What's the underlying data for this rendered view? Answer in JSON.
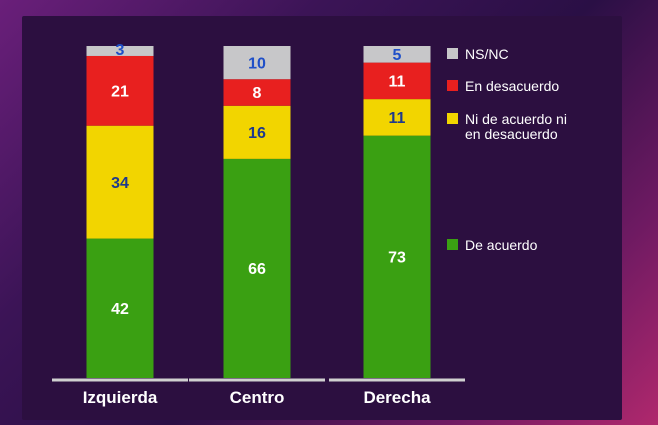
{
  "chart_data": {
    "type": "bar",
    "stacked": true,
    "percent": true,
    "categories": [
      "Izquierda",
      "Centro",
      "Derecha"
    ],
    "series": [
      {
        "name": "De acuerdo",
        "color": "#3aa012",
        "values": [
          42,
          66,
          73
        ]
      },
      {
        "name": "Ni de acuerdo ni en desacuerdo",
        "name_lines": [
          "Ni de acuerdo ni",
          "en desacuerdo"
        ],
        "color": "#f2d500",
        "values": [
          34,
          16,
          11
        ]
      },
      {
        "name": "En desacuerdo",
        "color": "#e8201f",
        "values": [
          21,
          8,
          11
        ]
      },
      {
        "name": "NS/NC",
        "color": "#c7c7c9",
        "values": [
          3,
          10,
          5
        ]
      }
    ],
    "label_colors": {
      "De acuerdo": "#ffffff",
      "Ni de acuerdo ni en desacuerdo": "#1f3a8c",
      "En desacuerdo": "#ffffff",
      "NS/NC": "#1f4fc8"
    },
    "legend_order": [
      "NS/NC",
      "En desacuerdo",
      "Ni de acuerdo ni en desacuerdo",
      "De acuerdo"
    ],
    "legend_position": "right",
    "grid": false,
    "title": "",
    "xlabel": "",
    "ylabel": ""
  }
}
